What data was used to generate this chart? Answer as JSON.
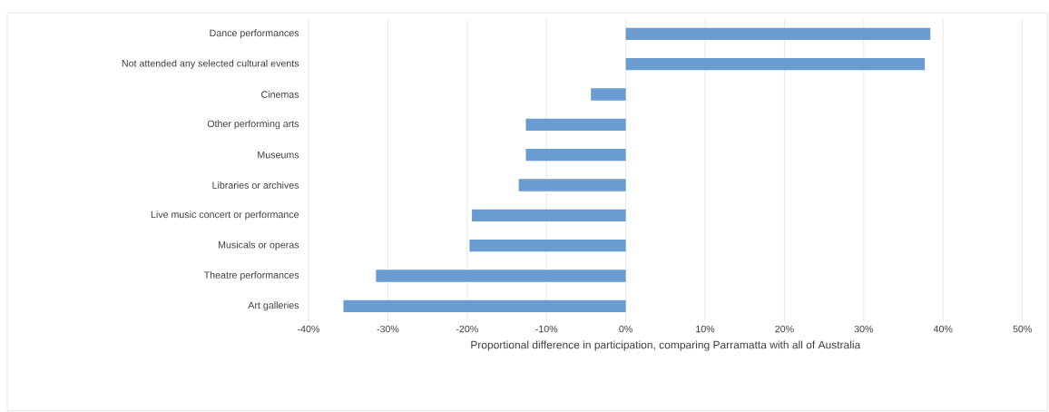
{
  "chart_data": {
    "type": "bar",
    "orientation": "horizontal",
    "xlabel": "Proportional difference in participation, comparing Parramatta with all of Australia",
    "categories": [
      "Dance performances",
      "Not attended any selected cultural events",
      "Cinemas",
      "Other performing arts",
      "Museums",
      "Libraries or archives",
      "Live music concert or performance",
      "Musicals or operas",
      "Theatre performances",
      "Art galleries"
    ],
    "values": [
      38.4,
      37.7,
      -4.4,
      -12.6,
      -12.6,
      -13.5,
      -19.4,
      -19.7,
      -31.5,
      -35.6
    ],
    "color": "#6a9bd1",
    "xlim": [
      -40,
      50
    ],
    "xticks": [
      {
        "value": -40,
        "label": "-40%"
      },
      {
        "value": -30,
        "label": "-30%"
      },
      {
        "value": -20,
        "label": "-20%"
      },
      {
        "value": -10,
        "label": "-10%"
      },
      {
        "value": 0,
        "label": "0%"
      },
      {
        "value": 10,
        "label": "10%"
      },
      {
        "value": 20,
        "label": "20%"
      },
      {
        "value": 30,
        "label": "30%"
      },
      {
        "value": 40,
        "label": "40%"
      },
      {
        "value": 50,
        "label": "50%"
      }
    ],
    "grid": "x"
  }
}
